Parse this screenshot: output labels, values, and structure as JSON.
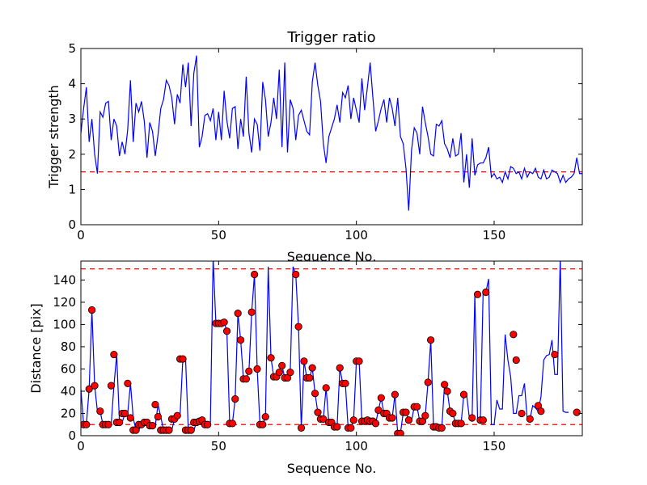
{
  "chart_data": [
    {
      "type": "line",
      "title": "Trigger ratio",
      "xlabel": "Sequence No.",
      "ylabel": "Trigger strength",
      "xlim": [
        0,
        182
      ],
      "ylim": [
        0,
        5
      ],
      "xticks": [
        0,
        50,
        100,
        150
      ],
      "yticks": [
        0,
        1,
        2,
        3,
        4,
        5
      ],
      "threshold": 1.5,
      "colors": {
        "line": "#0000ff",
        "threshold": "#ff0000"
      },
      "x_start": 0,
      "series": [
        {
          "values": [
            2.6,
            3.3,
            3.9,
            2.35,
            3.0,
            2.0,
            1.45,
            3.2,
            3.05,
            3.45,
            3.5,
            2.4,
            3.0,
            2.8,
            1.95,
            2.35,
            2.0,
            2.7,
            4.1,
            2.35,
            3.45,
            3.2,
            3.5,
            2.95,
            1.9,
            2.9,
            2.65,
            1.95,
            2.55,
            3.3,
            3.55,
            4.1,
            3.95,
            3.6,
            2.85,
            3.7,
            3.45,
            4.55,
            3.9,
            4.6,
            2.8,
            4.3,
            4.8,
            2.2,
            2.5,
            3.1,
            3.15,
            2.95,
            3.3,
            2.4,
            3.2,
            2.4,
            3.8,
            2.95,
            2.45,
            3.3,
            3.35,
            2.15,
            3.0,
            2.5,
            4.2,
            2.6,
            2.05,
            3.0,
            2.85,
            2.1,
            4.05,
            3.55,
            2.5,
            2.9,
            3.6,
            3.0,
            4.4,
            2.2,
            4.6,
            2.05,
            3.55,
            3.3,
            2.4,
            3.1,
            3.25,
            2.95,
            2.65,
            2.55,
            4.05,
            4.6,
            3.95,
            3.5,
            2.3,
            1.75,
            2.5,
            2.75,
            3.0,
            3.4,
            2.9,
            3.75,
            3.6,
            3.95,
            3.0,
            3.6,
            3.25,
            2.9,
            4.15,
            3.25,
            3.9,
            4.6,
            3.6,
            2.65,
            2.95,
            3.3,
            3.55,
            2.9,
            3.6,
            3.3,
            2.8,
            3.6,
            2.5,
            2.3,
            1.6,
            0.4,
            2.1,
            2.75,
            2.6,
            2.0,
            3.35,
            2.9,
            2.5,
            2.0,
            1.95,
            2.85,
            2.8,
            2.95,
            2.3,
            2.15,
            1.9,
            2.45,
            1.95,
            2.0,
            2.6,
            1.2,
            2.0,
            1.05,
            2.45,
            1.4,
            1.7,
            1.75,
            1.75,
            1.9,
            2.2,
            1.35,
            1.45,
            1.3,
            1.35,
            1.2,
            1.5,
            1.3,
            1.65,
            1.6,
            1.45,
            1.5,
            1.3,
            1.6,
            1.35,
            1.5,
            1.45,
            1.6,
            1.35,
            1.3,
            1.55,
            1.3,
            1.35,
            1.55,
            1.5,
            1.45,
            1.2,
            1.4,
            1.2,
            1.3,
            1.35,
            1.45,
            1.9,
            1.45,
            1.45
          ]
        }
      ]
    },
    {
      "type": "line",
      "title": "",
      "xlabel": "Sequence No.",
      "ylabel": "Distance [pix]",
      "xlim": [
        0,
        182
      ],
      "ylim": [
        0,
        157
      ],
      "xticks": [
        0,
        50,
        100,
        150
      ],
      "yticks": [
        0,
        20,
        40,
        60,
        80,
        100,
        120,
        140
      ],
      "thresholds": [
        10,
        150
      ],
      "colors": {
        "line": "#0000ff",
        "threshold": "#ff0000",
        "marker": "#ff0000"
      },
      "x_start": 0,
      "series": [
        {
          "values": [
            42,
            10,
            10,
            42,
            113,
            45,
            22,
            22,
            10,
            10,
            10,
            10,
            45,
            73,
            12,
            12,
            20,
            20,
            47,
            16,
            5,
            5,
            10,
            10,
            12,
            12,
            9,
            9,
            28,
            17,
            5,
            5,
            5,
            5,
            15,
            15,
            18,
            69,
            69,
            5,
            5,
            5,
            12,
            12,
            13,
            14,
            10,
            10,
            160,
            101,
            101,
            101,
            102,
            94,
            11,
            11,
            33,
            110,
            86,
            51,
            51,
            58,
            111,
            145,
            60,
            10,
            10,
            17,
            152,
            70,
            53,
            53,
            57,
            63,
            52,
            52,
            57,
            152,
            145,
            98,
            7,
            67,
            52,
            52,
            61,
            38,
            21,
            15,
            15,
            43,
            12,
            12,
            8,
            8,
            61,
            47,
            47,
            7,
            7,
            14,
            67,
            67,
            13,
            13,
            14,
            13,
            13,
            11,
            23,
            34,
            20,
            20,
            16,
            16,
            37,
            2,
            2,
            21,
            21,
            14,
            13,
            26,
            26,
            13,
            13,
            18,
            48,
            86,
            8,
            8,
            7,
            7,
            46,
            40,
            22,
            20,
            11,
            11,
            11,
            37,
            37,
            16,
            16,
            127,
            14,
            14,
            129,
            129,
            141,
            10,
            10,
            32,
            24,
            24,
            91,
            68,
            53,
            20,
            20,
            36,
            36,
            47,
            15,
            15,
            27,
            25,
            22,
            35,
            68,
            72,
            73,
            86,
            55,
            55,
            160,
            22,
            21,
            21
          ],
          "markers": [
            [
              1,
              10
            ],
            [
              2,
              10
            ],
            [
              3,
              42
            ],
            [
              4,
              113
            ],
            [
              5,
              45
            ],
            [
              7,
              22
            ],
            [
              8,
              10
            ],
            [
              9,
              10
            ],
            [
              10,
              10
            ],
            [
              11,
              45
            ],
            [
              12,
              73
            ],
            [
              13,
              12
            ],
            [
              14,
              12
            ],
            [
              15,
              20
            ],
            [
              16,
              20
            ],
            [
              17,
              47
            ],
            [
              18,
              16
            ],
            [
              19,
              5
            ],
            [
              20,
              5
            ],
            [
              21,
              10
            ],
            [
              22,
              10
            ],
            [
              23,
              12
            ],
            [
              24,
              12
            ],
            [
              25,
              9
            ],
            [
              26,
              9
            ],
            [
              27,
              28
            ],
            [
              28,
              17
            ],
            [
              29,
              5
            ],
            [
              30,
              5
            ],
            [
              31,
              5
            ],
            [
              32,
              5
            ],
            [
              33,
              15
            ],
            [
              34,
              15
            ],
            [
              35,
              18
            ],
            [
              36,
              69
            ],
            [
              37,
              69
            ],
            [
              38,
              5
            ],
            [
              39,
              5
            ],
            [
              40,
              5
            ],
            [
              41,
              12
            ],
            [
              42,
              12
            ],
            [
              43,
              13
            ],
            [
              44,
              14
            ],
            [
              45,
              10
            ],
            [
              46,
              10
            ],
            [
              49,
              101
            ],
            [
              50,
              101
            ],
            [
              51,
              101
            ],
            [
              52,
              102
            ],
            [
              53,
              94
            ],
            [
              54,
              11
            ],
            [
              55,
              11
            ],
            [
              56,
              33
            ],
            [
              57,
              110
            ],
            [
              58,
              86
            ],
            [
              59,
              51
            ],
            [
              60,
              51
            ],
            [
              61,
              58
            ],
            [
              62,
              111
            ],
            [
              63,
              145
            ],
            [
              64,
              60
            ],
            [
              65,
              10
            ],
            [
              66,
              10
            ],
            [
              67,
              17
            ],
            [
              69,
              70
            ],
            [
              70,
              53
            ],
            [
              71,
              53
            ],
            [
              72,
              57
            ],
            [
              73,
              63
            ],
            [
              74,
              52
            ],
            [
              75,
              52
            ],
            [
              76,
              57
            ],
            [
              78,
              145
            ],
            [
              79,
              98
            ],
            [
              80,
              7
            ],
            [
              81,
              67
            ],
            [
              82,
              52
            ],
            [
              83,
              52
            ],
            [
              84,
              61
            ],
            [
              85,
              38
            ],
            [
              86,
              21
            ],
            [
              87,
              15
            ],
            [
              88,
              15
            ],
            [
              89,
              43
            ],
            [
              90,
              12
            ],
            [
              91,
              12
            ],
            [
              92,
              8
            ],
            [
              93,
              8
            ],
            [
              94,
              61
            ],
            [
              95,
              47
            ],
            [
              96,
              47
            ],
            [
              97,
              7
            ],
            [
              98,
              7
            ],
            [
              99,
              14
            ],
            [
              100,
              67
            ],
            [
              101,
              67
            ],
            [
              102,
              13
            ],
            [
              103,
              13
            ],
            [
              104,
              14
            ],
            [
              105,
              13
            ],
            [
              106,
              13
            ],
            [
              107,
              11
            ],
            [
              108,
              23
            ],
            [
              109,
              34
            ],
            [
              110,
              20
            ],
            [
              111,
              20
            ],
            [
              112,
              16
            ],
            [
              113,
              16
            ],
            [
              114,
              37
            ],
            [
              115,
              2
            ],
            [
              116,
              2
            ],
            [
              117,
              21
            ],
            [
              118,
              21
            ],
            [
              119,
              14
            ],
            [
              121,
              26
            ],
            [
              122,
              26
            ],
            [
              123,
              13
            ],
            [
              124,
              13
            ],
            [
              125,
              18
            ],
            [
              126,
              48
            ],
            [
              127,
              86
            ],
            [
              128,
              8
            ],
            [
              129,
              8
            ],
            [
              130,
              7
            ],
            [
              131,
              7
            ],
            [
              132,
              46
            ],
            [
              133,
              40
            ],
            [
              134,
              22
            ],
            [
              135,
              20
            ],
            [
              136,
              11
            ],
            [
              137,
              11
            ],
            [
              138,
              11
            ],
            [
              139,
              37
            ],
            [
              142,
              16
            ],
            [
              144,
              127
            ],
            [
              145,
              14
            ],
            [
              146,
              14
            ],
            [
              147,
              129
            ],
            [
              157,
              91
            ],
            [
              158,
              68
            ],
            [
              160,
              20
            ],
            [
              163,
              15
            ],
            [
              166,
              27
            ],
            [
              167,
              22
            ],
            [
              172,
              73
            ],
            [
              180,
              21
            ]
          ]
        }
      ]
    }
  ]
}
